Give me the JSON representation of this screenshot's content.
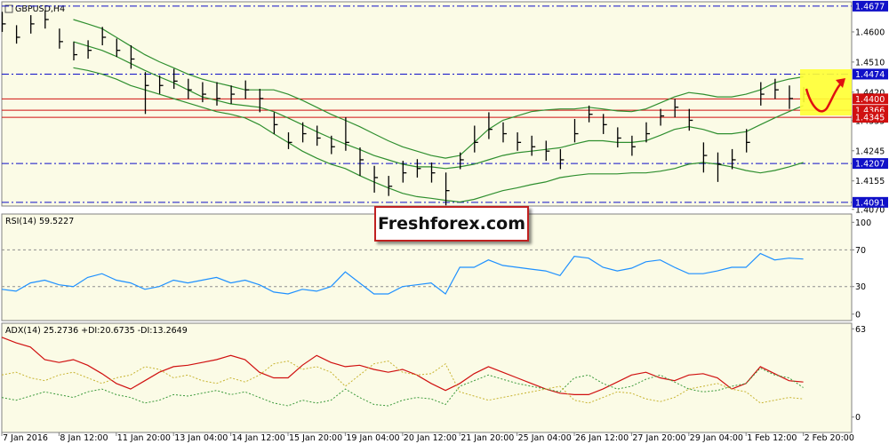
{
  "chart_data": [
    {
      "type": "ohlc",
      "title": "GBPUSD,H4",
      "color": "#000000",
      "high": [
        1.466,
        1.462,
        1.465,
        1.4665,
        1.461,
        1.457,
        1.4575,
        1.4615,
        1.458,
        1.456,
        1.448,
        1.447,
        1.449,
        1.446,
        1.445,
        1.445,
        1.444,
        1.4455,
        1.443,
        1.436,
        1.43,
        1.433,
        1.432,
        1.429,
        1.4345,
        1.4255,
        1.42,
        1.417,
        1.4215,
        1.422,
        1.421,
        1.418,
        1.424,
        1.432,
        1.436,
        1.433,
        1.43,
        1.429,
        1.4275,
        1.425,
        1.434,
        1.438,
        1.4355,
        1.4315,
        1.429,
        1.433,
        1.437,
        1.44,
        1.437,
        1.427,
        1.424,
        1.425,
        1.431,
        1.445,
        1.446,
        1.444,
        1.4435
      ],
      "low": [
        1.46,
        1.4565,
        1.4595,
        1.461,
        1.455,
        1.4515,
        1.452,
        1.456,
        1.4525,
        1.449,
        1.4355,
        1.4415,
        1.443,
        1.44,
        1.439,
        1.438,
        1.4385,
        1.44,
        1.436,
        1.4295,
        1.425,
        1.427,
        1.426,
        1.4235,
        1.4245,
        1.417,
        1.412,
        1.411,
        1.415,
        1.4165,
        1.415,
        1.4082,
        1.419,
        1.424,
        1.428,
        1.427,
        1.4245,
        1.423,
        1.4215,
        1.419,
        1.427,
        1.433,
        1.4295,
        1.4255,
        1.423,
        1.427,
        1.432,
        1.4345,
        1.4305,
        1.418,
        1.4152,
        1.419,
        1.424,
        1.438,
        1.44,
        1.437,
        1.439
      ],
      "close": [
        1.4624,
        1.4584,
        1.4624,
        1.4637,
        1.4571,
        1.4532,
        1.4545,
        1.4584,
        1.4545,
        1.4519,
        1.444,
        1.444,
        1.4453,
        1.4427,
        1.4414,
        1.4401,
        1.4414,
        1.4427,
        1.4401,
        1.4323,
        1.427,
        1.4296,
        1.4283,
        1.4257,
        1.427,
        1.4218,
        1.4165,
        1.4139,
        1.4179,
        1.4192,
        1.4179,
        1.4126,
        1.4218,
        1.427,
        1.4309,
        1.4296,
        1.427,
        1.4257,
        1.4244,
        1.4218,
        1.4296,
        1.4354,
        1.4323,
        1.4283,
        1.4257,
        1.4296,
        1.4349,
        1.4375,
        1.4336,
        1.4231,
        1.4205,
        1.4218,
        1.427,
        1.4414,
        1.4427,
        1.4401,
        1.4414
      ],
      "series": [
        {
          "color": "#2f8f2f",
          "values": [
            null,
            null,
            null,
            null,
            null,
            1.4637,
            1.4624,
            1.461,
            1.4584,
            1.4558,
            1.4532,
            1.4511,
            1.4493,
            1.4474,
            1.4459,
            1.4448,
            1.4438,
            1.4427,
            1.4427,
            1.4427,
            1.4414,
            1.4396,
            1.4375,
            1.4354,
            1.4336,
            1.4317,
            1.4296,
            1.4275,
            1.4257,
            1.4244,
            1.4231,
            1.4223,
            1.4231,
            1.427,
            1.4309,
            1.4336,
            1.4349,
            1.4362,
            1.4367,
            1.437,
            1.437,
            1.4375,
            1.437,
            1.4364,
            1.4362,
            1.437,
            1.4388,
            1.4406,
            1.4419,
            1.4414,
            1.4406,
            1.4406,
            1.4414,
            1.4427,
            1.4448,
            1.4459,
            1.4466
          ]
        },
        {
          "color": "#2f8f2f",
          "values": [
            null,
            null,
            null,
            null,
            null,
            1.4571,
            1.4558,
            1.4545,
            1.4527,
            1.4506,
            1.4485,
            1.4466,
            1.4448,
            1.4427,
            1.4406,
            1.4396,
            1.4385,
            1.438,
            1.4375,
            1.4362,
            1.4343,
            1.4323,
            1.4302,
            1.4283,
            1.4265,
            1.4249,
            1.4231,
            1.4218,
            1.4205,
            1.4197,
            1.4197,
            1.4192,
            1.4197,
            1.4205,
            1.4218,
            1.4231,
            1.4239,
            1.4244,
            1.4249,
            1.4254,
            1.4265,
            1.4275,
            1.4275,
            1.427,
            1.427,
            1.4275,
            1.4291,
            1.4309,
            1.4317,
            1.4309,
            1.4296,
            1.4296,
            1.4302,
            1.4323,
            1.4343,
            1.4362,
            1.438
          ]
        },
        {
          "color": "#2f8f2f",
          "values": [
            null,
            null,
            null,
            null,
            null,
            1.4493,
            1.4485,
            1.4474,
            1.4459,
            1.444,
            1.4427,
            1.4414,
            1.4401,
            1.4388,
            1.4375,
            1.4362,
            1.4354,
            1.4343,
            1.4323,
            1.4296,
            1.427,
            1.4244,
            1.4223,
            1.4205,
            1.4192,
            1.4171,
            1.4152,
            1.4134,
            1.4118,
            1.4108,
            1.4103,
            1.4097,
            1.4092,
            1.41,
            1.4113,
            1.4126,
            1.4134,
            1.4144,
            1.4152,
            1.4165,
            1.4171,
            1.4176,
            1.4176,
            1.4176,
            1.4179,
            1.4179,
            1.4184,
            1.4192,
            1.4205,
            1.421,
            1.4205,
            1.4197,
            1.4186,
            1.4179,
            1.4186,
            1.4197,
            1.421
          ]
        }
      ],
      "ylim": [
        1.408,
        1.469
      ],
      "yticks": [
        {
          "value": 1.46,
          "label": "1.4600"
        },
        {
          "value": 1.451,
          "label": "1.4510"
        },
        {
          "value": 1.442,
          "label": "1.4420"
        },
        1.4335,
        1.4245,
        1.4155,
        {
          "value": 1.407,
          "label": "1.4070"
        }
      ],
      "levels": [
        {
          "value": 1.4677,
          "color": "#1010c8",
          "style": "dashdot"
        },
        {
          "value": 1.4474,
          "color": "#1010c8",
          "style": "dashdot"
        },
        {
          "value": 1.44,
          "label": "1.4400",
          "color": "#d01010",
          "style": "solid"
        },
        {
          "value": 1.4366,
          "color": "#d01010",
          "style": "solid"
        },
        {
          "value": 1.4345,
          "color": "#d01010",
          "style": "solid"
        },
        {
          "value": 1.4207,
          "color": "#1010c8",
          "style": "dashdot"
        },
        {
          "value": 1.4091,
          "color": "#1010c8",
          "style": "dashdot"
        }
      ],
      "watermark": "Freshforex.com"
    },
    {
      "type": "line",
      "title": "RSI(14) 59.5227",
      "series": [
        {
          "color": "#1e90ff",
          "style": "solid",
          "values": [
            27,
            25,
            34,
            37,
            32,
            30,
            40,
            44,
            37,
            34,
            27,
            30,
            37,
            34,
            37,
            40,
            34,
            37,
            32,
            24,
            22,
            27,
            25,
            30,
            46,
            34,
            22,
            22,
            30,
            32,
            34,
            22,
            51,
            51,
            59,
            53,
            51,
            49,
            47,
            42,
            63,
            61,
            51,
            47,
            50,
            57,
            59,
            51,
            44,
            44,
            47,
            51,
            51,
            66,
            59,
            61,
            60
          ]
        }
      ],
      "ylim": [
        -7,
        109
      ],
      "yticks": [
        0,
        30,
        70,
        100
      ],
      "levels": [
        30,
        70
      ]
    },
    {
      "type": "line",
      "title": "ADX(14) 25.2736 +DI:20.6735 -DI:13.2649",
      "categories": [
        "7 Jan 2016",
        null,
        null,
        null,
        "8 Jan 12:00",
        null,
        null,
        null,
        "11 Jan 20:00",
        null,
        null,
        null,
        "13 Jan 04:00",
        null,
        null,
        null,
        "14 Jan 12:00",
        null,
        null,
        null,
        "15 Jan 20:00",
        null,
        null,
        null,
        "19 Jan 04:00",
        null,
        null,
        null,
        "20 Jan 12:00",
        null,
        null,
        null,
        "21 Jan 20:00",
        null,
        null,
        null,
        "25 Jan 04:00",
        null,
        null,
        null,
        "26 Jan 12:00",
        null,
        null,
        null,
        "27 Jan 20:00",
        null,
        null,
        null,
        "29 Jan 04:00",
        null,
        null,
        null,
        "1 Feb 12:00",
        null,
        null,
        null,
        "2 Feb 20:00"
      ],
      "series": [
        {
          "color": "#d01010",
          "style": "solid",
          "values": [
            57,
            53,
            50,
            41,
            39,
            41,
            37,
            31,
            24,
            20,
            26,
            32,
            36,
            37,
            39,
            41,
            44,
            41,
            32,
            28,
            28,
            37,
            44,
            39,
            36,
            37,
            34,
            32,
            34,
            30,
            24,
            19,
            24,
            31,
            36,
            32,
            28,
            24,
            20,
            17,
            16,
            16,
            20,
            25,
            30,
            32,
            28,
            26,
            30,
            31,
            28,
            20,
            24,
            36,
            31,
            26,
            25
          ]
        },
        {
          "color": "#3c9a3c",
          "style": "dotted",
          "values": [
            14,
            12,
            15,
            18,
            16,
            14,
            18,
            20,
            16,
            14,
            10,
            12,
            16,
            15,
            17,
            19,
            16,
            18,
            14,
            10,
            8,
            12,
            10,
            12,
            20,
            14,
            9,
            8,
            12,
            14,
            13,
            9,
            22,
            26,
            30,
            27,
            24,
            22,
            20,
            18,
            28,
            30,
            24,
            20,
            22,
            27,
            30,
            25,
            20,
            18,
            19,
            22,
            24,
            35,
            30,
            28,
            21
          ]
        },
        {
          "color": "#c8b432",
          "style": "dotted",
          "values": [
            30,
            32,
            28,
            26,
            30,
            32,
            28,
            24,
            28,
            30,
            36,
            34,
            28,
            30,
            26,
            24,
            28,
            25,
            30,
            38,
            40,
            34,
            36,
            32,
            22,
            30,
            38,
            40,
            32,
            30,
            31,
            38,
            18,
            15,
            12,
            14,
            16,
            18,
            20,
            22,
            12,
            10,
            14,
            18,
            17,
            13,
            11,
            14,
            20,
            22,
            24,
            20,
            18,
            10,
            12,
            14,
            13
          ]
        }
      ],
      "ylim": [
        -11,
        67
      ],
      "yticks": [
        0,
        63
      ]
    }
  ]
}
